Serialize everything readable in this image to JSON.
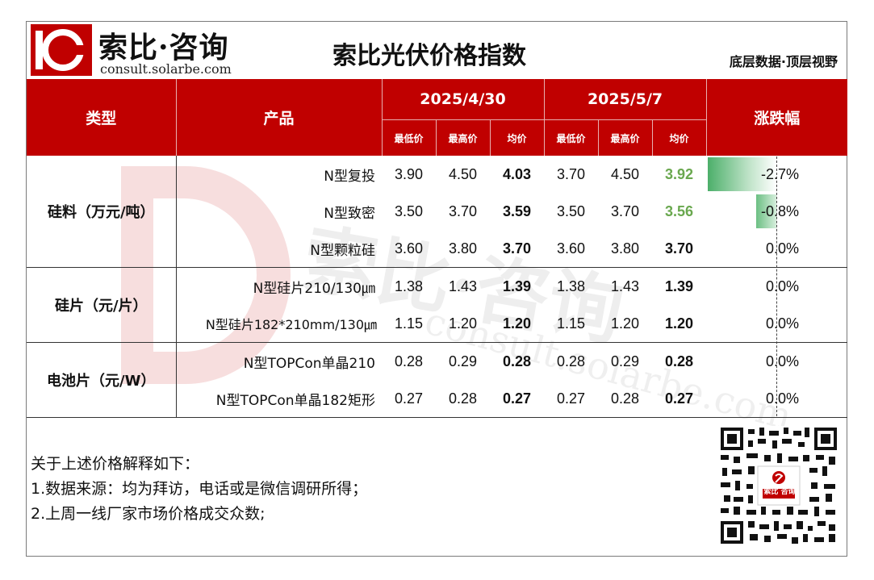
{
  "brand": {
    "name": "索比·咨询",
    "url": "consult.solarbe.com"
  },
  "title": "索比光伏价格指数",
  "tagline": "底层数据·顶层视野",
  "colors": {
    "header_bg": "#c00000",
    "up_green": "#6aa84f"
  },
  "table": {
    "headers": {
      "type": "类型",
      "product": "产品",
      "date1": "2025/4/30",
      "date2": "2025/5/7",
      "change": "涨跌幅",
      "min": "最低价",
      "max": "最高价",
      "avg": "均价"
    },
    "groups": [
      {
        "category": "硅料（万元/吨）",
        "rows": [
          {
            "product": "N型复投",
            "d1_min": "3.90",
            "d1_max": "4.50",
            "d1_avg": "4.03",
            "d2_min": "3.70",
            "d2_max": "4.50",
            "d2_avg": "3.92",
            "change": "-2.7%",
            "change_value": -2.7
          },
          {
            "product": "N型致密",
            "d1_min": "3.50",
            "d1_max": "3.70",
            "d1_avg": "3.59",
            "d2_min": "3.50",
            "d2_max": "3.70",
            "d2_avg": "3.56",
            "change": "-0.8%",
            "change_value": -0.8
          },
          {
            "product": "N型颗粒硅",
            "d1_min": "3.60",
            "d1_max": "3.80",
            "d1_avg": "3.70",
            "d2_min": "3.60",
            "d2_max": "3.80",
            "d2_avg": "3.70",
            "change": "0.0%",
            "change_value": 0
          }
        ]
      },
      {
        "category": "硅片（元/片）",
        "rows": [
          {
            "product": "N型硅片210/130㎛",
            "d1_min": "1.38",
            "d1_max": "1.43",
            "d1_avg": "1.39",
            "d2_min": "1.38",
            "d2_max": "1.43",
            "d2_avg": "1.39",
            "change": "0.0%",
            "change_value": 0
          },
          {
            "product": "N型硅片182*210mm/130㎛",
            "d1_min": "1.15",
            "d1_max": "1.20",
            "d1_avg": "1.20",
            "d2_min": "1.15",
            "d2_max": "1.20",
            "d2_avg": "1.20",
            "change": "0.0%",
            "change_value": 0
          }
        ]
      },
      {
        "category": "电池片（元/W）",
        "rows": [
          {
            "product": "N型TOPCon单晶210",
            "d1_min": "0.28",
            "d1_max": "0.29",
            "d1_avg": "0.28",
            "d2_min": "0.28",
            "d2_max": "0.29",
            "d2_avg": "0.28",
            "change": "0.0%",
            "change_value": 0
          },
          {
            "product": "N型TOPCon单晶182矩形",
            "d1_min": "0.27",
            "d1_max": "0.28",
            "d1_avg": "0.27",
            "d2_min": "0.27",
            "d2_max": "0.28",
            "d2_avg": "0.27",
            "change": "0.0%",
            "change_value": 0
          }
        ]
      }
    ]
  },
  "notes": {
    "heading": "关于上述价格解释如下：",
    "items": [
      "1.数据来源：均为拜访，电话或是微信调研所得；",
      "2.上周一线厂家市场价格成交众数;"
    ]
  },
  "watermark": {
    "text": "索比·咨询",
    "url": "consult.solarbe.com"
  },
  "qr": {
    "label": "索比 咨询",
    "icon": "qr-code-icon"
  }
}
